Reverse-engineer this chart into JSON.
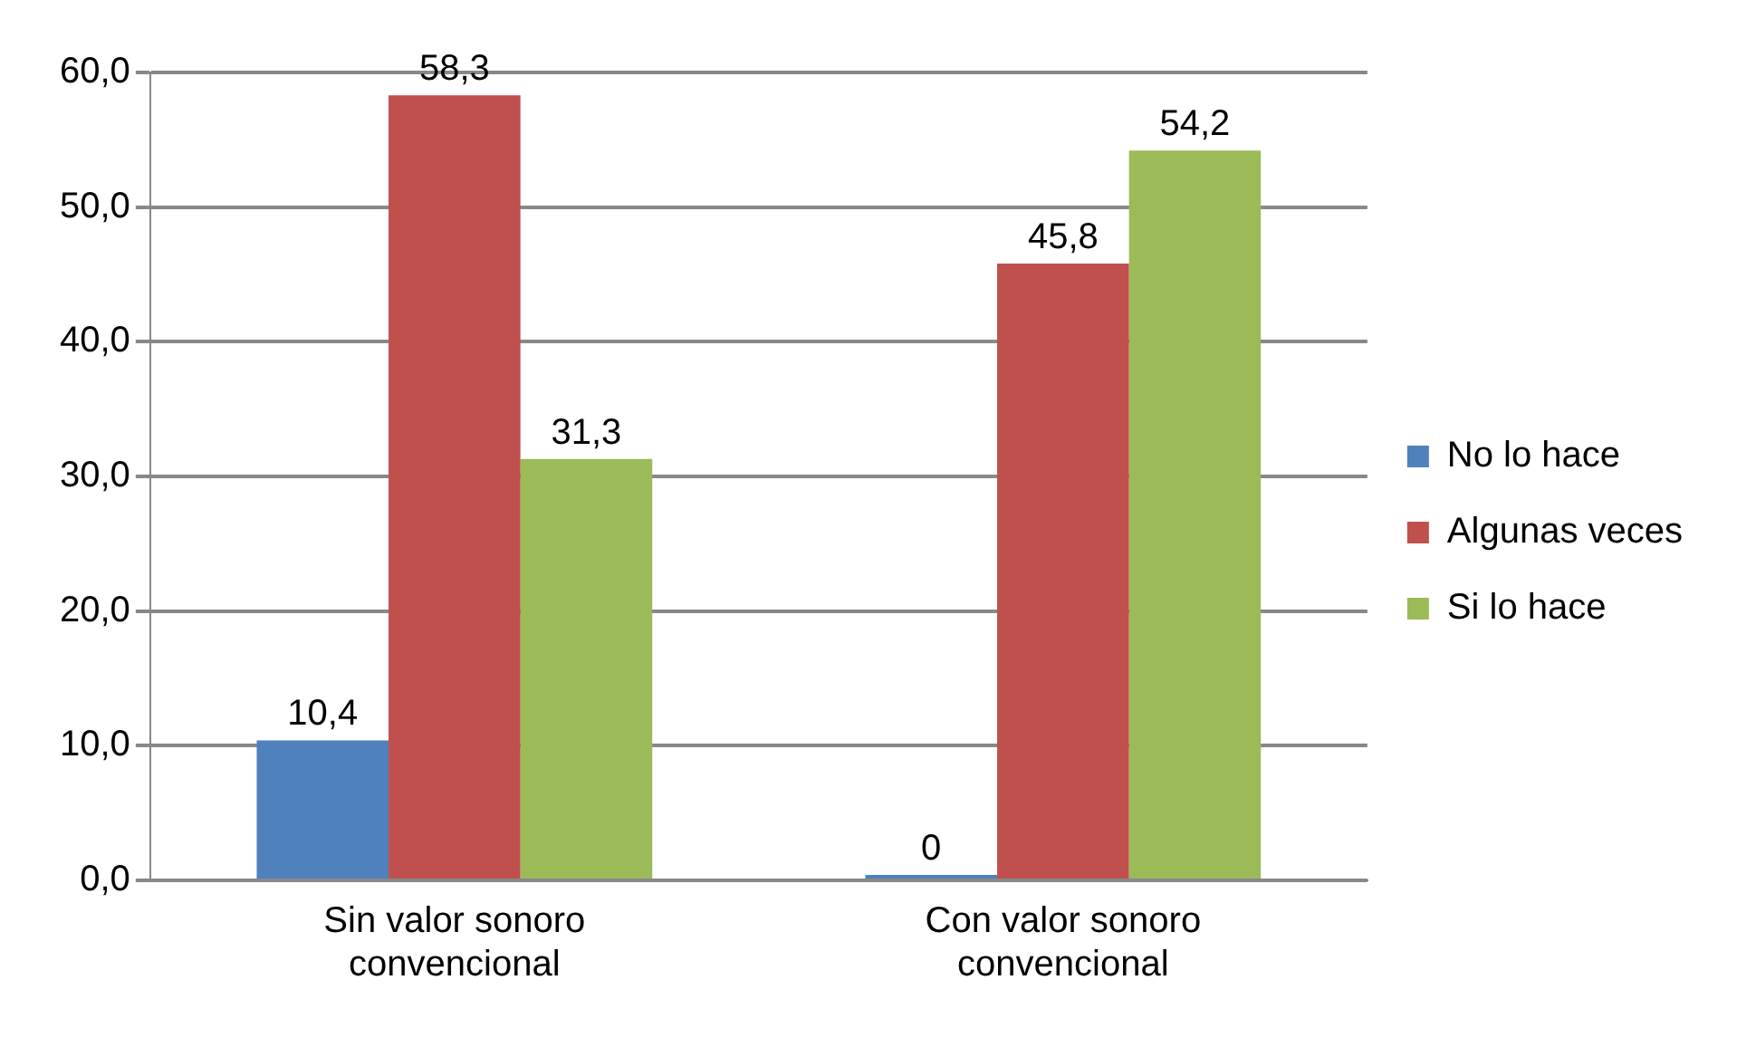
{
  "chart_data": {
    "type": "bar",
    "categories": [
      "Sin valor sonoro convencional",
      "Con valor sonoro convencional"
    ],
    "series": [
      {
        "name": "No lo hace",
        "color": "#4f81bd",
        "values": [
          10.4,
          0
        ],
        "value_labels": [
          "10,4",
          "0"
        ]
      },
      {
        "name": "Algunas veces",
        "color": "#c0504d",
        "values": [
          58.3,
          45.8
        ],
        "value_labels": [
          "58,3",
          "45,8"
        ]
      },
      {
        "name": "Si lo hace",
        "color": "#9bbb59",
        "values": [
          31.3,
          54.2
        ],
        "value_labels": [
          "31,3",
          "54,2"
        ]
      }
    ],
    "ylim": [
      0,
      60
    ],
    "yticks": [
      {
        "value": 0,
        "label": "0,0"
      },
      {
        "value": 10,
        "label": "10,0"
      },
      {
        "value": 20,
        "label": "20,0"
      },
      {
        "value": 30,
        "label": "30,0"
      },
      {
        "value": 40,
        "label": "40,0"
      },
      {
        "value": 50,
        "label": "50,0"
      },
      {
        "value": 60,
        "label": "60,0"
      }
    ],
    "grid": "y",
    "legend": "right"
  }
}
